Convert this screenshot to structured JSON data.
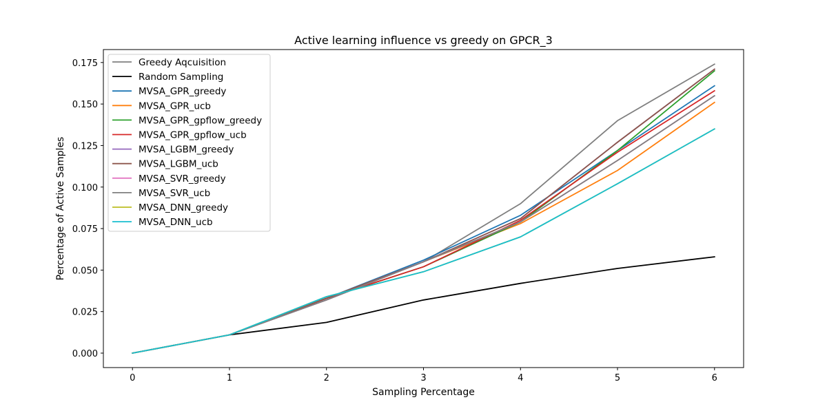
{
  "chart_data": {
    "type": "line",
    "title": "Active learning influence vs greedy on GPCR_3",
    "xlabel": "Sampling Percentage",
    "ylabel": "Percentage of Active Samples",
    "x": [
      0,
      1,
      2,
      3,
      4,
      5,
      6
    ],
    "xlim": [
      -0.3,
      6.3
    ],
    "ylim": [
      -0.0087,
      0.1828
    ],
    "xticks": [
      "0",
      "1",
      "2",
      "3",
      "4",
      "5",
      "6"
    ],
    "yticks": [
      "0.000",
      "0.025",
      "0.050",
      "0.075",
      "0.100",
      "0.125",
      "0.150",
      "0.175"
    ],
    "legend_placement": "upper-left",
    "grid": false,
    "series": [
      {
        "name": "Greedy Aqcuisition",
        "color": "#7f7f7f",
        "values": [
          0.0,
          0.011,
          0.032,
          0.055,
          0.09,
          0.14,
          0.174
        ]
      },
      {
        "name": "Random Sampling",
        "color": "#000000",
        "values": [
          0.0,
          0.011,
          0.0185,
          0.032,
          0.042,
          0.051,
          0.058
        ]
      },
      {
        "name": "MVSA_GPR_greedy",
        "color": "#1f77b4",
        "values": [
          0.0,
          0.011,
          0.033,
          0.056,
          0.083,
          0.122,
          0.161
        ]
      },
      {
        "name": "MVSA_GPR_ucb",
        "color": "#ff7f0e",
        "values": [
          0.0,
          0.011,
          0.033,
          0.055,
          0.078,
          0.11,
          0.151
        ]
      },
      {
        "name": "MVSA_GPR_gpflow_greedy",
        "color": "#2ca02c",
        "values": [
          0.0,
          0.011,
          0.033,
          0.052,
          0.079,
          0.122,
          0.17
        ]
      },
      {
        "name": "MVSA_GPR_gpflow_ucb",
        "color": "#d62728",
        "values": [
          0.0,
          0.011,
          0.033,
          0.052,
          0.08,
          0.121,
          0.158
        ]
      },
      {
        "name": "MVSA_LGBM_greedy",
        "color": "#9467bd",
        "values": [
          0.0,
          0.011,
          0.033,
          0.055,
          0.081,
          0.127,
          0.171
        ]
      },
      {
        "name": "MVSA_LGBM_ucb",
        "color": "#8c564b",
        "values": [
          0.0,
          0.011,
          0.033,
          0.055,
          0.081,
          0.127,
          0.171
        ]
      },
      {
        "name": "MVSA_SVR_greedy",
        "color": "#e377c2",
        "values": [
          0.0,
          0.011,
          0.032,
          0.055,
          0.079,
          0.116,
          0.155
        ]
      },
      {
        "name": "MVSA_SVR_ucb",
        "color": "#7f7f7f",
        "values": [
          0.0,
          0.011,
          0.032,
          0.055,
          0.079,
          0.116,
          0.155
        ]
      },
      {
        "name": "MVSA_DNN_greedy",
        "color": "#bcbd22",
        "values": [
          0.0,
          0.011,
          0.034,
          0.049,
          0.07,
          0.102,
          0.135
        ]
      },
      {
        "name": "MVSA_DNN_ucb",
        "color": "#17becf",
        "values": [
          0.0,
          0.011,
          0.034,
          0.049,
          0.07,
          0.102,
          0.135
        ]
      }
    ]
  }
}
